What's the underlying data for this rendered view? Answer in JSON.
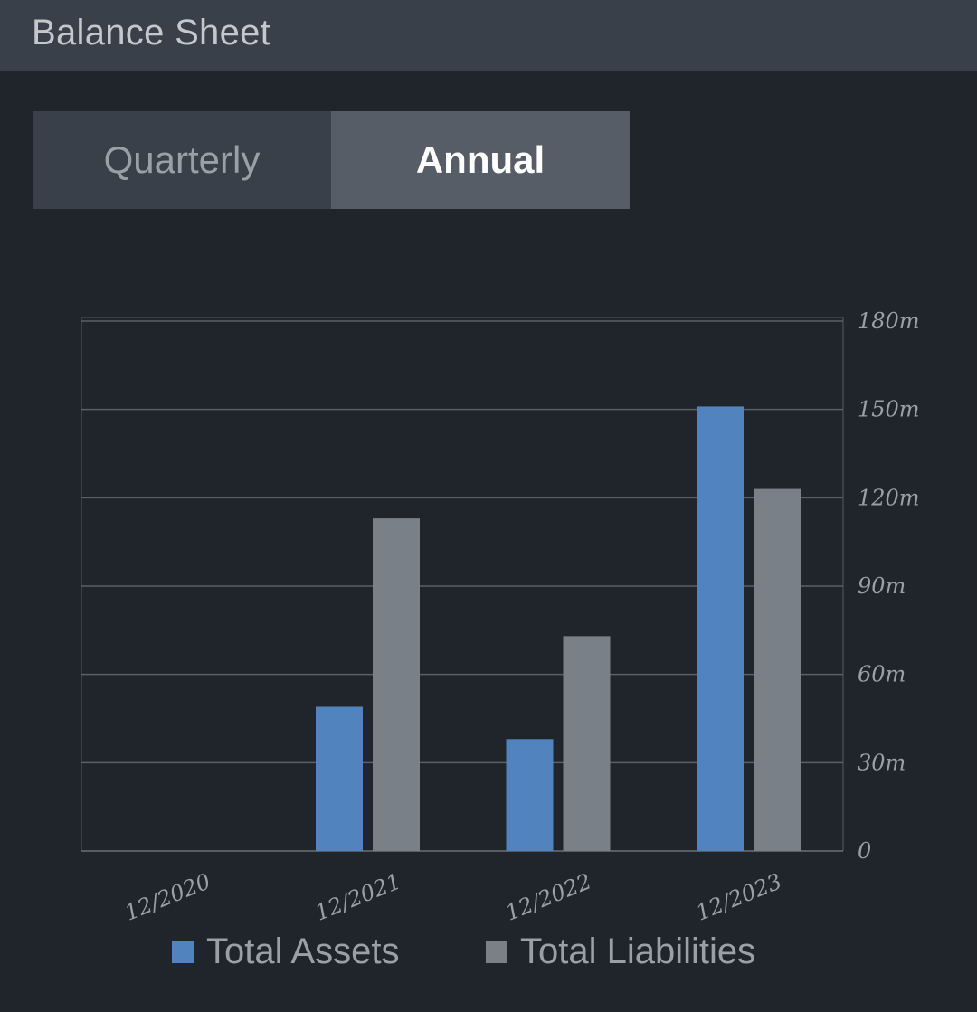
{
  "header": {
    "title": "Balance Sheet"
  },
  "period_tabs": {
    "items": [
      {
        "label": "Quarterly",
        "selected": false
      },
      {
        "label": "Annual",
        "selected": true
      }
    ]
  },
  "colors": {
    "assets": "#5183bf",
    "liabilities": "#7a8088",
    "grid": "#5a6068",
    "text": "#9aa0a7"
  },
  "chart_data": {
    "type": "bar",
    "categories": [
      "12/2020",
      "12/2021",
      "12/2022",
      "12/2023"
    ],
    "series": [
      {
        "name": "Total Assets",
        "values": [
          0,
          49,
          38,
          151
        ]
      },
      {
        "name": "Total Liabilities",
        "values": [
          0,
          113,
          73,
          123
        ]
      }
    ],
    "y_ticks": [
      "0",
      "30m",
      "60m",
      "90m",
      "120m",
      "150m",
      "180m"
    ],
    "ylim": [
      0,
      180
    ],
    "grid": true,
    "y_axis_position": "right",
    "legend_position": "bottom"
  }
}
